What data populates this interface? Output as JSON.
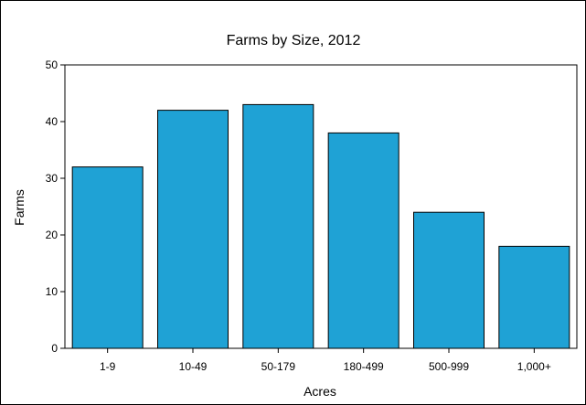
{
  "chart_data": {
    "type": "bar",
    "title": "Farms by Size, 2012",
    "xlabel": "Acres",
    "ylabel": "Farms",
    "categories": [
      "1-9",
      "10-49",
      "50-179",
      "180-499",
      "500-999",
      "1,000+"
    ],
    "values": [
      32,
      42,
      43,
      38,
      24,
      18
    ],
    "ylim": [
      0,
      50
    ],
    "yticks": [
      0,
      10,
      20,
      30,
      40,
      50
    ],
    "grid": false,
    "legend": "none",
    "bar_color": "#1fa2d5",
    "bar_edge_color": "#000000"
  }
}
